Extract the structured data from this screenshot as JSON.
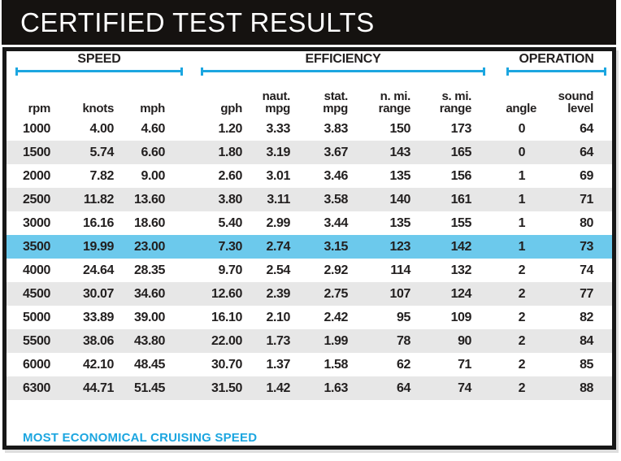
{
  "title": "CERTIFIED TEST RESULTS",
  "footer_note": "MOST ECONOMICAL CRUISING SPEED",
  "groups": {
    "speed": "SPEED",
    "efficiency": "EFFICIENCY",
    "operation": "OPERATION"
  },
  "colors": {
    "accent_cyan": "#1ca6e0",
    "highlight_row": "#6cc9ec",
    "stripe_gray": "#e7e7e7",
    "bar_black": "#151210"
  },
  "chart_data": {
    "type": "table",
    "title": "CERTIFIED TEST RESULTS",
    "column_groups": [
      {
        "label": "SPEED",
        "columns": [
          "rpm",
          "knots",
          "mph"
        ]
      },
      {
        "label": "EFFICIENCY",
        "columns": [
          "gph",
          "naut. mpg",
          "stat. mpg",
          "n. mi. range",
          "s. mi. range"
        ]
      },
      {
        "label": "OPERATION",
        "columns": [
          "angle",
          "sound level"
        ]
      }
    ],
    "columns": [
      {
        "line1": "",
        "line2": "rpm"
      },
      {
        "line1": "",
        "line2": "knots"
      },
      {
        "line1": "",
        "line2": "mph"
      },
      {
        "line1": "",
        "line2": "gph"
      },
      {
        "line1": "naut.",
        "line2": "mpg"
      },
      {
        "line1": "stat.",
        "line2": "mpg"
      },
      {
        "line1": "n. mi.",
        "line2": "range"
      },
      {
        "line1": "s. mi.",
        "line2": "range"
      },
      {
        "line1": "",
        "line2": "angle"
      },
      {
        "line1": "sound",
        "line2": "level"
      }
    ],
    "rows": [
      [
        "1000",
        "4.00",
        "4.60",
        "1.20",
        "3.33",
        "3.83",
        "150",
        "173",
        "0",
        "64"
      ],
      [
        "1500",
        "5.74",
        "6.60",
        "1.80",
        "3.19",
        "3.67",
        "143",
        "165",
        "0",
        "64"
      ],
      [
        "2000",
        "7.82",
        "9.00",
        "2.60",
        "3.01",
        "3.46",
        "135",
        "156",
        "1",
        "69"
      ],
      [
        "2500",
        "11.82",
        "13.60",
        "3.80",
        "3.11",
        "3.58",
        "140",
        "161",
        "1",
        "71"
      ],
      [
        "3000",
        "16.16",
        "18.60",
        "5.40",
        "2.99",
        "3.44",
        "135",
        "155",
        "1",
        "80"
      ],
      [
        "3500",
        "19.99",
        "23.00",
        "7.30",
        "2.74",
        "3.15",
        "123",
        "142",
        "1",
        "73"
      ],
      [
        "4000",
        "24.64",
        "28.35",
        "9.70",
        "2.54",
        "2.92",
        "114",
        "132",
        "2",
        "74"
      ],
      [
        "4500",
        "30.07",
        "34.60",
        "12.60",
        "2.39",
        "2.75",
        "107",
        "124",
        "2",
        "77"
      ],
      [
        "5000",
        "33.89",
        "39.00",
        "16.10",
        "2.10",
        "2.42",
        "95",
        "109",
        "2",
        "82"
      ],
      [
        "5500",
        "38.06",
        "43.80",
        "22.00",
        "1.73",
        "1.99",
        "78",
        "90",
        "2",
        "84"
      ],
      [
        "6000",
        "42.10",
        "48.45",
        "30.70",
        "1.37",
        "1.58",
        "62",
        "71",
        "2",
        "85"
      ],
      [
        "6300",
        "44.71",
        "51.45",
        "31.50",
        "1.42",
        "1.63",
        "64",
        "74",
        "2",
        "88"
      ]
    ],
    "highlighted_row_index": 5,
    "highlight_meaning": "MOST ECONOMICAL CRUISING SPEED",
    "striped_row_indices": [
      1,
      3,
      7,
      9,
      11
    ]
  }
}
